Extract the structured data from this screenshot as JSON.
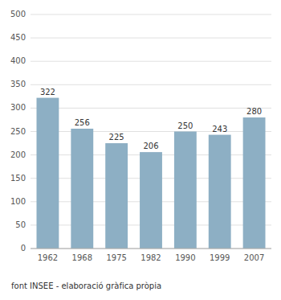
{
  "chart_data": {
    "type": "bar",
    "categories": [
      "1962",
      "1968",
      "1975",
      "1982",
      "1990",
      "1999",
      "2007"
    ],
    "values": [
      322,
      256,
      225,
      206,
      250,
      243,
      280
    ],
    "color": "#8DAFC4",
    "ylim": [
      0,
      500
    ],
    "yticks": [
      0,
      50,
      100,
      150,
      200,
      250,
      300,
      350,
      400,
      450,
      500
    ],
    "grid": true,
    "data_labels": true,
    "caption": "font INSEE - elaboració gràfica pròpia"
  }
}
